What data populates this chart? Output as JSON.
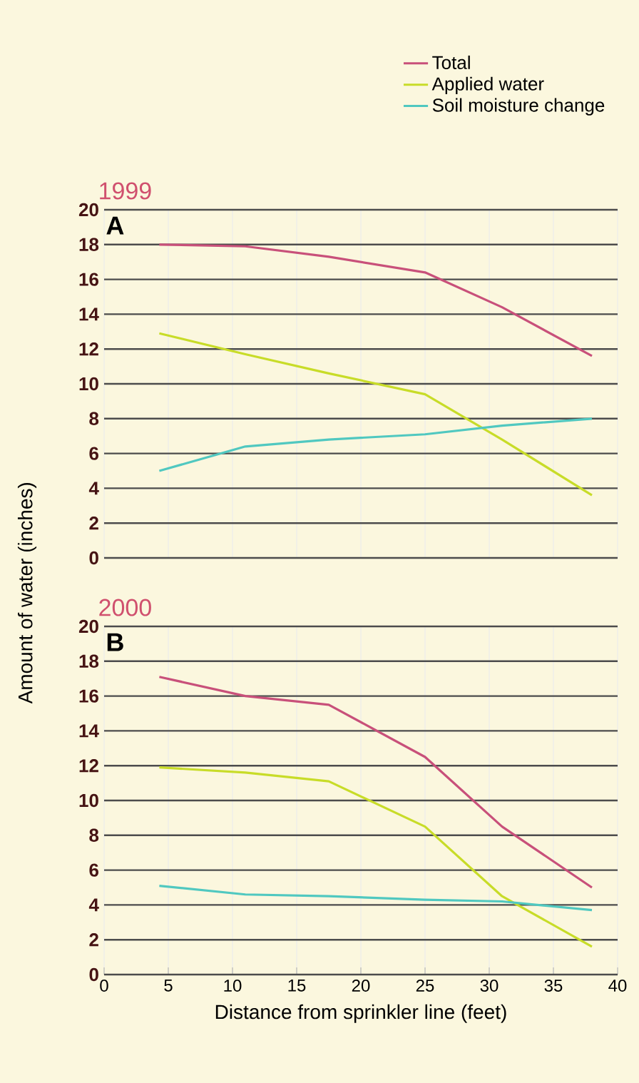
{
  "chart_data": [
    {
      "type": "line",
      "title": "1999",
      "annotations": [
        "A"
      ],
      "ylabel": "Amount of water (inches)",
      "x": [
        4.3,
        11,
        17.5,
        25,
        31,
        38
      ],
      "xlim": [
        0,
        40
      ],
      "xticks": [
        0,
        5,
        10,
        15,
        20,
        25,
        30,
        35,
        40
      ],
      "ylim": [
        0,
        20
      ],
      "yticks": [
        0,
        2,
        4,
        6,
        8,
        10,
        12,
        14,
        16,
        18,
        20
      ],
      "grid": true,
      "legend": "top",
      "tick_labels": "y",
      "series": [
        {
          "name": "Total",
          "color": "#c8507a",
          "values": [
            18.0,
            17.9,
            17.3,
            16.4,
            14.4,
            11.6
          ]
        },
        {
          "name": "Applied water",
          "color": "#c8dc28",
          "values": [
            12.9,
            11.7,
            10.6,
            9.4,
            6.8,
            3.6
          ]
        },
        {
          "name": "Soil moisture change",
          "color": "#50c8c0",
          "values": [
            5.0,
            6.4,
            6.8,
            7.1,
            7.6,
            8.0
          ]
        }
      ]
    },
    {
      "type": "line",
      "title": "2000",
      "annotations": [
        "B"
      ],
      "xlabel": "Distance from sprinkler line (feet)",
      "x": [
        4.3,
        11,
        17.5,
        25,
        31,
        38
      ],
      "xlim": [
        0,
        40
      ],
      "xticks": [
        0,
        5,
        10,
        15,
        20,
        25,
        30,
        35,
        40
      ],
      "ylim": [
        0,
        20
      ],
      "yticks": [
        0,
        2,
        4,
        6,
        8,
        10,
        12,
        14,
        16,
        18,
        20
      ],
      "grid": true,
      "series": [
        {
          "color": "#c8507a",
          "values": [
            17.1,
            16.0,
            15.5,
            12.5,
            8.5,
            5.0
          ]
        },
        {
          "color": "#c8dc28",
          "values": [
            11.9,
            11.6,
            11.1,
            8.5,
            4.5,
            1.6
          ]
        },
        {
          "color": "#50c8c0",
          "values": [
            5.1,
            4.6,
            4.5,
            4.3,
            4.2,
            3.7
          ]
        }
      ]
    }
  ]
}
